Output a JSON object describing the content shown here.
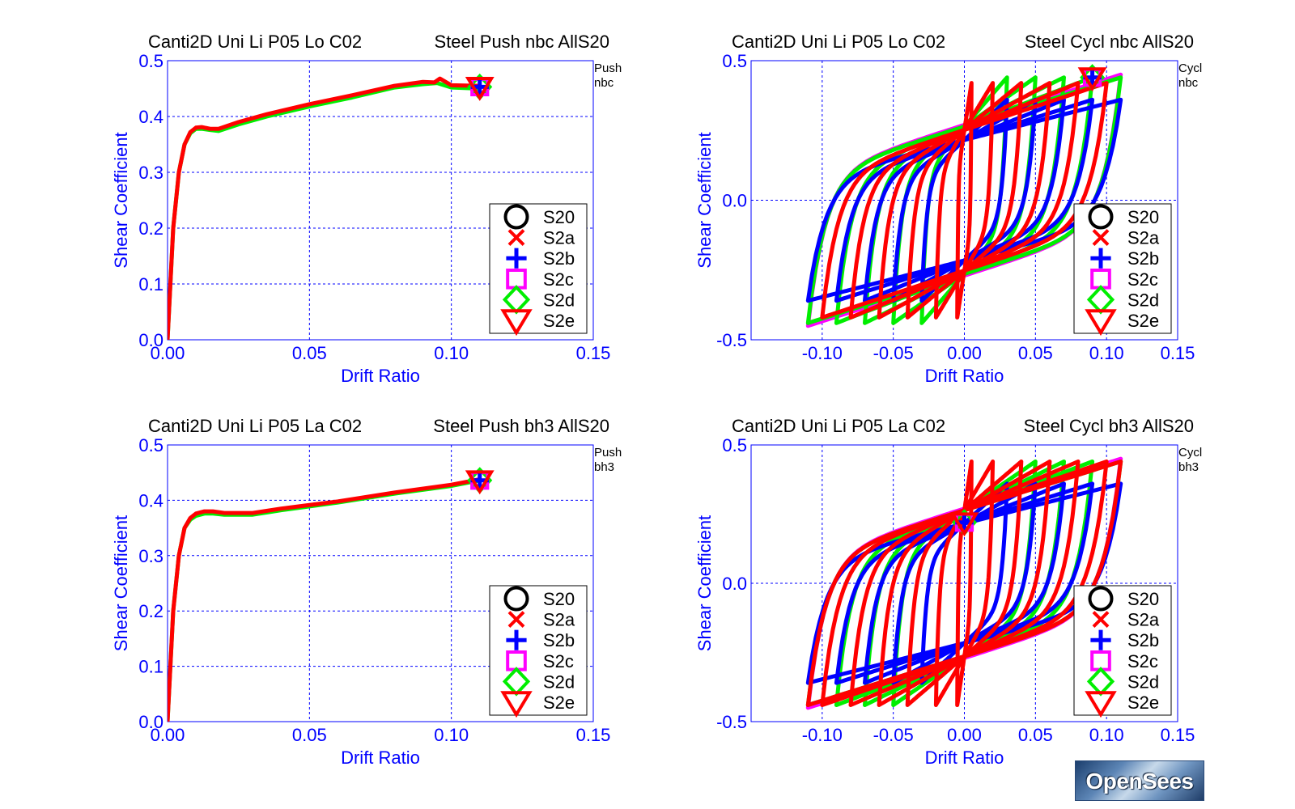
{
  "chart_data": [
    {
      "type": "line",
      "title_left": "Canti2D Uni Li P05 Lo C02",
      "title_right": "Steel Push nbc AllS20",
      "tag_line1": "Push",
      "tag_line2": "nbc",
      "xlabel": "Drift Ratio",
      "ylabel": "Shear Coefficient",
      "xlim": [
        0.0,
        0.15
      ],
      "ylim": [
        0.0,
        0.5
      ],
      "xticks": [
        "0.00",
        "0.05",
        "0.10",
        "0.15"
      ],
      "yticks": [
        "0.0",
        "0.1",
        "0.2",
        "0.3",
        "0.4",
        "0.5"
      ],
      "grid": true,
      "legend_position": "bottom-right",
      "legend": [
        "S20",
        "S2a",
        "S2b",
        "S2c",
        "S2d",
        "S2e"
      ],
      "series": [
        {
          "name": "S2d",
          "color": "#00ee00",
          "x": [
            0,
            0.002,
            0.004,
            0.006,
            0.008,
            0.01,
            0.012,
            0.015,
            0.018,
            0.025,
            0.035,
            0.05,
            0.065,
            0.08,
            0.09,
            0.095,
            0.1,
            0.11
          ],
          "y": [
            0,
            0.2,
            0.3,
            0.35,
            0.37,
            0.378,
            0.378,
            0.376,
            0.374,
            0.386,
            0.4,
            0.418,
            0.434,
            0.452,
            0.458,
            0.46,
            0.452,
            0.45
          ]
        },
        {
          "name": "S2a",
          "color": "#ff0000",
          "x": [
            0,
            0.002,
            0.004,
            0.006,
            0.008,
            0.01,
            0.012,
            0.015,
            0.018,
            0.025,
            0.035,
            0.05,
            0.065,
            0.08,
            0.09,
            0.094,
            0.096,
            0.1,
            0.11
          ],
          "y": [
            0,
            0.2,
            0.3,
            0.35,
            0.372,
            0.38,
            0.381,
            0.378,
            0.378,
            0.39,
            0.404,
            0.422,
            0.438,
            0.455,
            0.462,
            0.461,
            0.468,
            0.456,
            0.455
          ]
        }
      ],
      "end_markers": {
        "x": 0.11,
        "y": 0.453
      }
    },
    {
      "type": "line",
      "title_left": "Canti2D Uni Li P05 Lo C02",
      "title_right": "Steel Cycl nbc AllS20",
      "tag_line1": "Cycl",
      "tag_line2": "nbc",
      "xlabel": "Drift Ratio",
      "ylabel": "Shear Coefficient",
      "xlim": [
        -0.15,
        0.15
      ],
      "ylim": [
        -0.5,
        0.5
      ],
      "xticks": [
        "-0.10",
        "-0.05",
        "0.00",
        "0.05",
        "0.10",
        "0.15"
      ],
      "yticks": [
        "-0.5",
        "0.0",
        "0.5"
      ],
      "grid": true,
      "legend_position": "bottom-right",
      "legend": [
        "S20",
        "S2a",
        "S2b",
        "S2c",
        "S2d",
        "S2e"
      ],
      "loops": [
        {
          "name": "S2c",
          "color": "#ff00ff",
          "amplitudes": [
            0.11
          ],
          "fy": 0.45,
          "b": 0.22
        },
        {
          "name": "S2d",
          "color": "#00ee00",
          "amplitudes": [
            0.11,
            0.09,
            0.07,
            0.05,
            0.03
          ],
          "fy": 0.44,
          "b": 0.2
        },
        {
          "name": "S2b",
          "color": "#0000ff",
          "amplitudes": [
            0.11,
            0.09,
            0.07,
            0.05,
            0.03
          ],
          "fy": 0.36,
          "b": 0.05
        },
        {
          "name": "S2a",
          "color": "#ff0000",
          "amplitudes": [
            0.1,
            0.08,
            0.06,
            0.04,
            0.02,
            0.005
          ],
          "fy": 0.42,
          "b": 0.17
        }
      ],
      "end_markers": {
        "x": 0.09,
        "y": 0.44
      }
    },
    {
      "type": "line",
      "title_left": "Canti2D Uni Li P05 La C02",
      "title_right": "Steel Push bh3 AllS20",
      "tag_line1": "Push",
      "tag_line2": "bh3",
      "xlabel": "Drift Ratio",
      "ylabel": "Shear Coefficient",
      "xlim": [
        0.0,
        0.15
      ],
      "ylim": [
        0.0,
        0.5
      ],
      "xticks": [
        "0.00",
        "0.05",
        "0.10",
        "0.15"
      ],
      "yticks": [
        "0.0",
        "0.1",
        "0.2",
        "0.3",
        "0.4",
        "0.5"
      ],
      "grid": true,
      "legend_position": "bottom-right",
      "legend": [
        "S20",
        "S2a",
        "S2b",
        "S2c",
        "S2d",
        "S2e"
      ],
      "series": [
        {
          "name": "S2d",
          "color": "#00ee00",
          "x": [
            0,
            0.002,
            0.004,
            0.006,
            0.008,
            0.01,
            0.013,
            0.016,
            0.02,
            0.03,
            0.04,
            0.06,
            0.08,
            0.1,
            0.11
          ],
          "y": [
            0,
            0.2,
            0.3,
            0.35,
            0.365,
            0.372,
            0.376,
            0.376,
            0.374,
            0.374,
            0.382,
            0.396,
            0.412,
            0.426,
            0.436
          ]
        },
        {
          "name": "S2a",
          "color": "#ff0000",
          "x": [
            0,
            0.002,
            0.004,
            0.006,
            0.008,
            0.01,
            0.013,
            0.016,
            0.02,
            0.03,
            0.04,
            0.06,
            0.08,
            0.1,
            0.11
          ],
          "y": [
            0,
            0.2,
            0.3,
            0.35,
            0.368,
            0.376,
            0.38,
            0.38,
            0.377,
            0.377,
            0.385,
            0.398,
            0.414,
            0.428,
            0.438
          ]
        }
      ],
      "end_markers": {
        "x": 0.11,
        "y": 0.436
      }
    },
    {
      "type": "line",
      "title_left": "Canti2D Uni Li P05 La C02",
      "title_right": "Steel Cycl bh3 AllS20",
      "tag_line1": "Cycl",
      "tag_line2": "bh3",
      "xlabel": "Drift Ratio",
      "ylabel": "Shear Coefficient",
      "xlim": [
        -0.15,
        0.15
      ],
      "ylim": [
        -0.5,
        0.5
      ],
      "xticks": [
        "-0.10",
        "-0.05",
        "0.00",
        "0.05",
        "0.10",
        "0.15"
      ],
      "yticks": [
        "-0.5",
        "0.0",
        "0.5"
      ],
      "grid": true,
      "legend_position": "bottom-right",
      "legend": [
        "S20",
        "S2a",
        "S2b",
        "S2c",
        "S2d",
        "S2e"
      ],
      "loops": [
        {
          "name": "S2c",
          "color": "#ff00ff",
          "amplitudes": [
            0.11
          ],
          "fy": 0.45,
          "b": 0.22
        },
        {
          "name": "S2d",
          "color": "#00ee00",
          "amplitudes": [
            0.11,
            0.09,
            0.07,
            0.05
          ],
          "fy": 0.44,
          "b": 0.2
        },
        {
          "name": "S2b",
          "color": "#0000ff",
          "amplitudes": [
            0.11,
            0.09,
            0.07,
            0.05,
            0.03
          ],
          "fy": 0.36,
          "b": 0.05
        },
        {
          "name": "S2a",
          "color": "#ff0000",
          "amplitudes": [
            0.11,
            0.1,
            0.08,
            0.06,
            0.04,
            0.02,
            0.005
          ],
          "fy": 0.44,
          "b": 0.16
        }
      ],
      "end_markers": {
        "x": 0.0,
        "y": 0.22
      }
    }
  ],
  "logo_text": "OpenSees",
  "colors": {
    "axis": "#0000ff",
    "grid": "#0000ff",
    "text": "#000000"
  }
}
